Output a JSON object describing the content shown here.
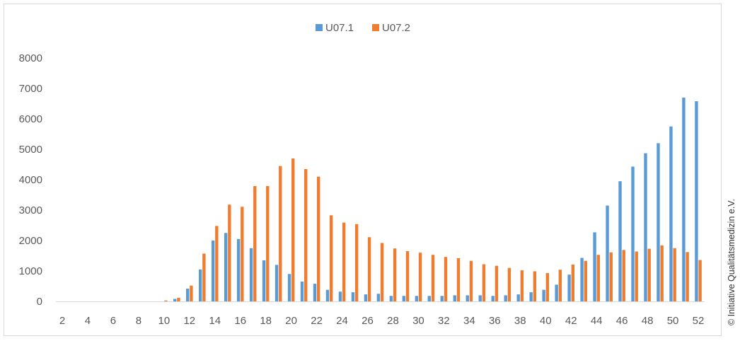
{
  "credit": "© Initiative Qualitätsmedizin e.V.",
  "chart_data": {
    "type": "bar",
    "title": "",
    "xlabel": "",
    "ylabel": "",
    "ylim": [
      0,
      8000
    ],
    "yticks": [
      0,
      1000,
      2000,
      3000,
      4000,
      5000,
      6000,
      7000,
      8000
    ],
    "xtick_labels": [
      "2",
      "4",
      "6",
      "8",
      "10",
      "12",
      "14",
      "16",
      "18",
      "20",
      "22",
      "24",
      "26",
      "28",
      "30",
      "32",
      "34",
      "36",
      "38",
      "40",
      "42",
      "44",
      "46",
      "48",
      "50",
      "52"
    ],
    "categories": [
      2,
      3,
      4,
      5,
      6,
      7,
      8,
      9,
      10,
      11,
      12,
      13,
      14,
      15,
      16,
      17,
      18,
      19,
      20,
      21,
      22,
      23,
      24,
      25,
      26,
      27,
      28,
      29,
      30,
      31,
      32,
      33,
      34,
      35,
      36,
      37,
      38,
      39,
      40,
      41,
      42,
      43,
      44,
      45,
      46,
      47,
      48,
      49,
      50,
      51,
      52
    ],
    "legend_position": "top",
    "grid": false,
    "series": [
      {
        "name": "U07.1",
        "color": "#5b9bd5",
        "values": [
          0,
          0,
          0,
          0,
          0,
          0,
          0,
          0,
          0,
          80,
          420,
          1050,
          2000,
          2250,
          2050,
          1750,
          1350,
          1200,
          900,
          650,
          580,
          380,
          320,
          300,
          230,
          250,
          180,
          180,
          180,
          180,
          180,
          200,
          200,
          200,
          180,
          200,
          230,
          300,
          380,
          550,
          880,
          1430,
          2270,
          3150,
          3950,
          4430,
          4870,
          5200,
          5750,
          6700,
          6580
        ]
      },
      {
        "name": "U07.2",
        "color": "#ed7d31",
        "values": [
          0,
          0,
          0,
          0,
          0,
          0,
          0,
          0,
          30,
          120,
          520,
          1570,
          2480,
          3180,
          3110,
          3790,
          3790,
          4450,
          4700,
          4350,
          4100,
          2830,
          2590,
          2540,
          2110,
          1920,
          1740,
          1650,
          1600,
          1530,
          1460,
          1420,
          1330,
          1220,
          1170,
          1100,
          1020,
          990,
          930,
          1040,
          1210,
          1330,
          1530,
          1610,
          1690,
          1640,
          1730,
          1840,
          1750,
          1620,
          1360
        ]
      }
    ]
  }
}
